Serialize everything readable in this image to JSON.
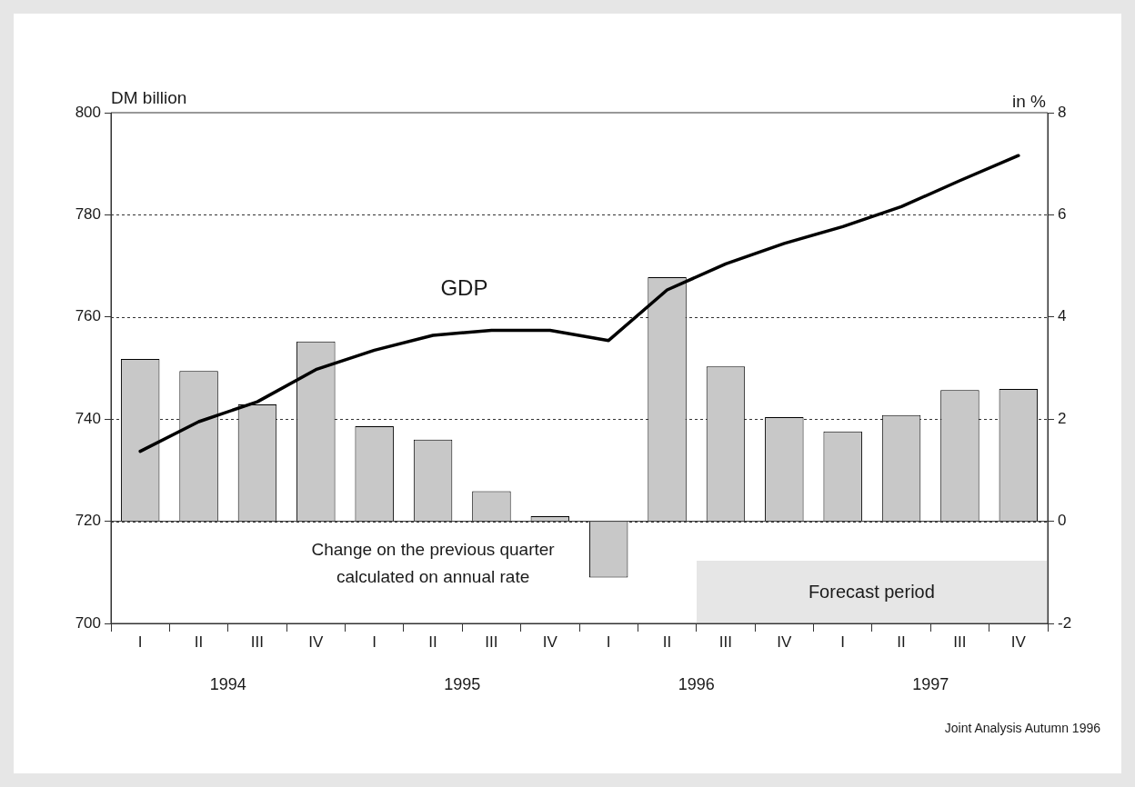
{
  "chart_data": {
    "type": "bar",
    "categories": [
      "I",
      "II",
      "III",
      "IV",
      "I",
      "II",
      "III",
      "IV",
      "I",
      "II",
      "III",
      "IV",
      "I",
      "II",
      "III",
      "IV"
    ],
    "series": [
      {
        "axis": "y2",
        "color": "#c8c8c8",
        "values": [
          3.18,
          2.94,
          2.29,
          3.52,
          1.86,
          1.6,
          0.59,
          0.1,
          -1.1,
          4.78,
          3.03,
          2.04,
          1.76,
          2.08,
          2.57,
          2.59
        ]
      },
      {
        "name": "GDP",
        "type": "line",
        "color": "#000000",
        "values": [
          733.7,
          739.5,
          743.4,
          749.7,
          753.5,
          756.4,
          757.4,
          757.4,
          755.4,
          765.3,
          770.4,
          774.4,
          777.7,
          781.6,
          786.7,
          791.6
        ]
      }
    ],
    "ylabel": "DM billion",
    "y2label": "in %",
    "ylim": [
      700,
      800
    ],
    "yticks": [
      700,
      720,
      740,
      760,
      780,
      800
    ],
    "y2lim": [
      -2,
      8
    ],
    "y2ticks": [
      -2,
      0,
      2,
      4,
      6,
      8
    ],
    "grid": "y",
    "legend": false,
    "marker": "none",
    "line_style": "solid",
    "annotations": [
      "1994",
      "1995",
      "1996",
      "1997",
      "Change on the previous quarter calculated on annual rate",
      "Forecast period",
      "Joint Analysis Autumn 1996"
    ]
  }
}
